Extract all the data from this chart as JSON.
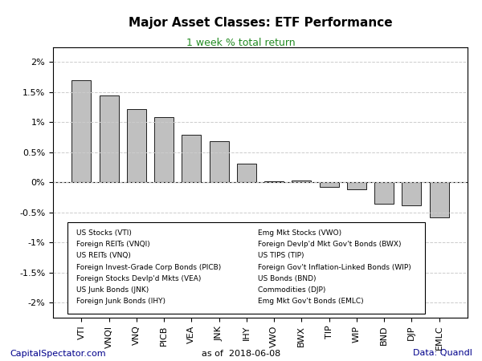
{
  "title": "Major Asset Classes: ETF Performance",
  "subtitle": "1 week % total return",
  "tickers": [
    "VTI",
    "VNQI",
    "VNQ",
    "PICB",
    "VEA",
    "JNK",
    "IHY",
    "VWO",
    "BWX",
    "TIP",
    "WIP",
    "BND",
    "DJP",
    "EMLC"
  ],
  "values": [
    1.7,
    1.44,
    1.22,
    1.09,
    0.79,
    0.68,
    0.31,
    0.02,
    0.03,
    -0.08,
    -0.12,
    -0.35,
    -0.38,
    -0.58
  ],
  "bar_color": "#c0c0c0",
  "bar_edge_color": "#000000",
  "legend_left": [
    "US Stocks (VTI)",
    "Foreign REITs (VNQI)",
    "US REITs (VNQ)",
    "Foreign Invest-Grade Corp Bonds (PICB)",
    "Foreign Stocks Devlp'd Mkts (VEA)",
    "US Junk Bonds (JNK)",
    "Foreign Junk Bonds (IHY)"
  ],
  "legend_right": [
    "Emg Mkt Stocks (VWO)",
    "Foreign Devlp'd Mkt Gov't Bonds (BWX)",
    "US TIPS (TIP)",
    "Foreign Gov't Inflation-Linked Bonds (WIP)",
    "US Bonds (BND)",
    "Commodities (DJP)",
    "Emg Mkt Gov't Bonds (EMLC)"
  ],
  "footer_left": "CapitalSpectator.com",
  "footer_center": "as of  2018-06-08",
  "footer_right": "Data: Quandl",
  "ylim": [
    -2.25,
    2.25
  ],
  "yticks": [
    -2.0,
    -1.5,
    -1.0,
    -0.5,
    0.0,
    0.5,
    1.0,
    1.5,
    2.0
  ],
  "ytick_labels": [
    "-2%",
    "-1.5%",
    "-1%",
    "-0.5%",
    "0%",
    "0.5%",
    "1%",
    "1.5%",
    "2%"
  ],
  "background_color": "#ffffff",
  "grid_color": "#cccccc",
  "title_color": "#000000",
  "subtitle_color": "#228B22",
  "footer_left_color": "#00008B",
  "footer_right_color": "#00008B",
  "footer_center_color": "#000000"
}
